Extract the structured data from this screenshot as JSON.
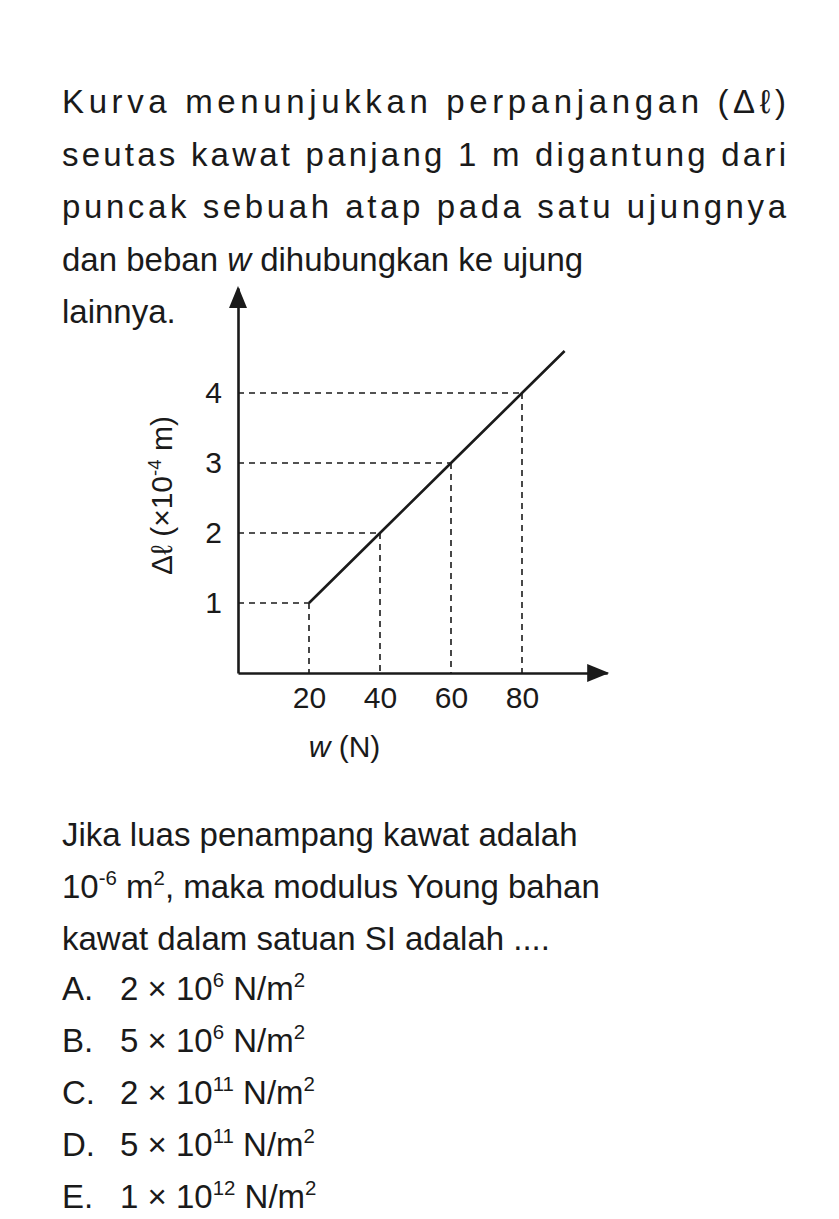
{
  "problem": {
    "intro": [
      [
        {
          "text": "Kurva menunjukkan perpanjangan (Δℓ)"
        }
      ],
      [
        {
          "text": "seutas kawat panjang 1 m digantung dari"
        }
      ],
      [
        {
          "text": "puncak sebuah atap pada satu ujungnya"
        }
      ],
      [
        {
          "text": "dan beban "
        },
        {
          "text": "w",
          "style": "italic"
        },
        {
          "text": " dihubungkan ke ujung"
        }
      ],
      [
        {
          "text": "lainnya."
        }
      ]
    ],
    "question": [
      [
        {
          "text": "Jika luas penampang kawat adalah"
        }
      ],
      [
        {
          "text": "10"
        },
        {
          "text": "-6",
          "style": "sup"
        },
        {
          "text": " m"
        },
        {
          "text": "2",
          "style": "sup"
        },
        {
          "text": ", maka modulus Young bahan"
        }
      ],
      [
        {
          "text": "kawat dalam satuan SI adalah ...."
        }
      ]
    ],
    "options": [
      {
        "letter": "A.",
        "text": [
          {
            "text": "2 × 10"
          },
          {
            "text": "6",
            "style": "sup"
          },
          {
            "text": " N/m"
          },
          {
            "text": "2",
            "style": "sup"
          }
        ]
      },
      {
        "letter": "B.",
        "text": [
          {
            "text": "5 × 10"
          },
          {
            "text": "6",
            "style": "sup"
          },
          {
            "text": " N/m"
          },
          {
            "text": "2",
            "style": "sup"
          }
        ]
      },
      {
        "letter": "C.",
        "text": [
          {
            "text": "2 × 10"
          },
          {
            "text": "11",
            "style": "sup"
          },
          {
            "text": " N/m"
          },
          {
            "text": "2",
            "style": "sup"
          }
        ]
      },
      {
        "letter": "D.",
        "text": [
          {
            "text": "5 × 10"
          },
          {
            "text": "11",
            "style": "sup"
          },
          {
            "text": " N/m"
          },
          {
            "text": "2",
            "style": "sup"
          }
        ]
      },
      {
        "letter": "E.",
        "text": [
          {
            "text": "1 × 10"
          },
          {
            "text": "12",
            "style": "sup"
          },
          {
            "text": " N/m"
          },
          {
            "text": "2",
            "style": "sup"
          }
        ]
      }
    ]
  },
  "chart_data": {
    "type": "line",
    "x_label": [
      {
        "text": "w",
        "style": "italic"
      },
      {
        "text": " (N)"
      }
    ],
    "y_label": [
      {
        "text": "Δℓ (×10"
      },
      {
        "text": "-4",
        "style": "sup"
      },
      {
        "text": " m)"
      }
    ],
    "x": [
      20,
      40,
      60,
      80,
      92
    ],
    "series": [
      {
        "values": [
          1,
          2,
          3,
          4,
          4.6
        ],
        "color": "#1a1a1a",
        "line_style": "solid"
      }
    ],
    "xlim": [
      0,
      104
    ],
    "ylim": [
      0,
      5.5
    ],
    "xticks": [
      20,
      40,
      60,
      80
    ],
    "yticks": [
      1,
      2,
      3,
      4
    ],
    "grid": false
  }
}
